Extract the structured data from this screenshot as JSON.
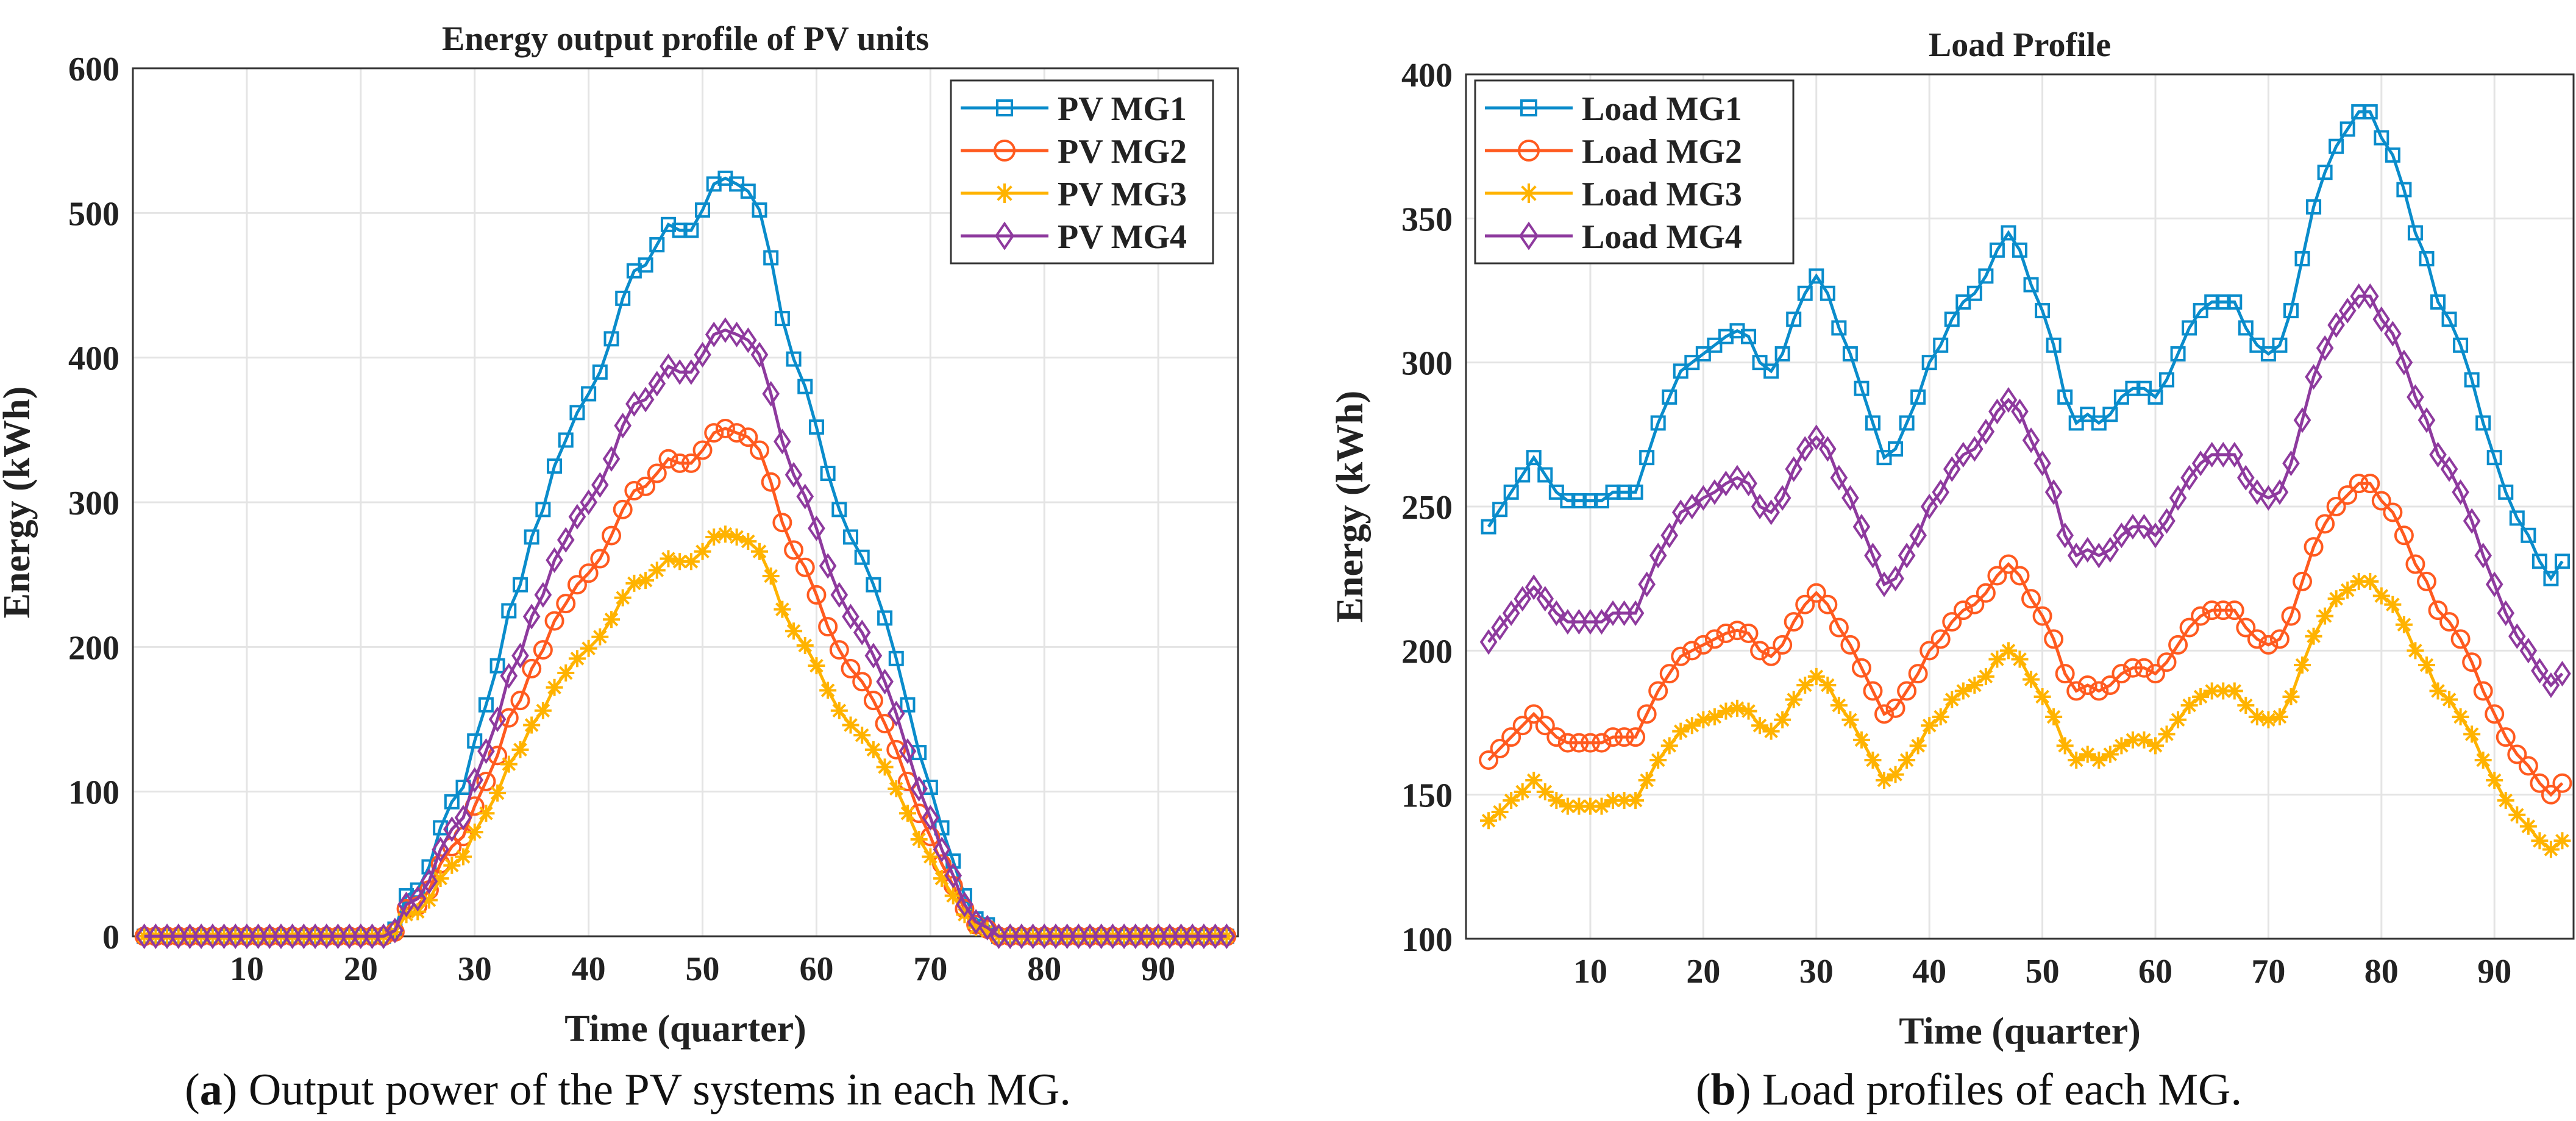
{
  "colors": {
    "s1": "#0A8CCB",
    "s2": "#FF5A1F",
    "s3": "#FFB300",
    "s4": "#8E3A9E",
    "grid": "#E4E4E4"
  },
  "captions": [
    {
      "letter": "a",
      "text": " Output power of the PV systems in each MG."
    },
    {
      "letter": "b",
      "text": " Load profiles of each MG."
    }
  ],
  "chart_data": [
    {
      "type": "line",
      "title": "Energy output profile of PV units",
      "xlabel": "Time (quarter)",
      "ylabel": "Energy (kWh)",
      "xlim": [
        0,
        97
      ],
      "ylim": [
        0,
        600
      ],
      "xticks": [
        10,
        20,
        30,
        40,
        50,
        60,
        70,
        80,
        90
      ],
      "yticks": [
        0,
        100,
        200,
        300,
        400,
        500,
        600
      ],
      "grid": true,
      "legend": "top-right",
      "x_start": 1,
      "series": [
        {
          "name": "PV MG1",
          "marker": "square",
          "values": [
            0,
            0,
            0,
            0,
            0,
            0,
            0,
            0,
            0,
            0,
            0,
            0,
            0,
            0,
            0,
            0,
            0,
            0,
            0,
            0,
            0,
            0,
            5,
            28,
            32,
            48,
            75,
            93,
            103,
            135,
            160,
            187,
            225,
            243,
            276,
            295,
            325,
            343,
            362,
            375,
            390,
            413,
            441,
            460,
            464,
            478,
            492,
            488,
            488,
            502,
            520,
            524,
            520,
            515,
            502,
            469,
            427,
            399,
            380,
            352,
            320,
            295,
            276,
            262,
            243,
            220,
            192,
            160,
            127,
            103,
            75,
            52,
            28,
            12,
            8,
            0,
            0,
            0,
            0,
            0,
            0,
            0,
            0,
            0,
            0,
            0,
            0,
            0,
            0,
            0,
            0,
            0,
            0,
            0,
            0,
            0
          ]
        },
        {
          "name": "PV MG2",
          "marker": "circle",
          "values": [
            0,
            0,
            0,
            0,
            0,
            0,
            0,
            0,
            0,
            0,
            0,
            0,
            0,
            0,
            0,
            0,
            0,
            0,
            0,
            0,
            0,
            0,
            3,
            19,
            21,
            32,
            50,
            62,
            69,
            90,
            107,
            125,
            151,
            163,
            185,
            198,
            218,
            230,
            243,
            251,
            261,
            277,
            295,
            308,
            311,
            320,
            330,
            327,
            327,
            336,
            348,
            351,
            348,
            345,
            336,
            314,
            286,
            267,
            255,
            236,
            214,
            198,
            185,
            176,
            163,
            147,
            129,
            107,
            85,
            69,
            50,
            35,
            19,
            8,
            5,
            0,
            0,
            0,
            0,
            0,
            0,
            0,
            0,
            0,
            0,
            0,
            0,
            0,
            0,
            0,
            0,
            0,
            0,
            0,
            0,
            0
          ]
        },
        {
          "name": "PV MG3",
          "marker": "asterisk",
          "values": [
            0,
            0,
            0,
            0,
            0,
            0,
            0,
            0,
            0,
            0,
            0,
            0,
            0,
            0,
            0,
            0,
            0,
            0,
            0,
            0,
            0,
            0,
            3,
            15,
            17,
            25,
            40,
            49,
            55,
            72,
            85,
            99,
            119,
            129,
            146,
            156,
            172,
            182,
            192,
            199,
            207,
            219,
            234,
            244,
            246,
            253,
            261,
            259,
            259,
            266,
            276,
            278,
            276,
            273,
            266,
            249,
            226,
            211,
            201,
            187,
            170,
            156,
            146,
            139,
            129,
            117,
            102,
            85,
            67,
            55,
            40,
            28,
            15,
            6,
            4,
            0,
            0,
            0,
            0,
            0,
            0,
            0,
            0,
            0,
            0,
            0,
            0,
            0,
            0,
            0,
            0,
            0,
            0,
            0,
            0,
            0
          ]
        },
        {
          "name": "PV MG4",
          "marker": "diamond",
          "values": [
            0,
            0,
            0,
            0,
            0,
            0,
            0,
            0,
            0,
            0,
            0,
            0,
            0,
            0,
            0,
            0,
            0,
            0,
            0,
            0,
            0,
            0,
            4,
            22,
            26,
            38,
            60,
            74,
            82,
            108,
            128,
            150,
            180,
            194,
            221,
            236,
            260,
            274,
            290,
            300,
            312,
            330,
            353,
            368,
            371,
            382,
            394,
            390,
            390,
            402,
            416,
            419,
            416,
            412,
            402,
            375,
            342,
            319,
            304,
            282,
            256,
            236,
            221,
            210,
            194,
            176,
            154,
            128,
            102,
            82,
            60,
            42,
            22,
            10,
            6,
            0,
            0,
            0,
            0,
            0,
            0,
            0,
            0,
            0,
            0,
            0,
            0,
            0,
            0,
            0,
            0,
            0,
            0,
            0,
            0,
            0
          ]
        }
      ]
    },
    {
      "type": "line",
      "title": "Load Profile",
      "xlabel": "Time (quarter)",
      "ylabel": "Energy (kWh)",
      "xlim": [
        -1,
        97
      ],
      "ylim": [
        100,
        400
      ],
      "xticks": [
        10,
        20,
        30,
        40,
        50,
        60,
        70,
        80,
        90
      ],
      "yticks": [
        100,
        150,
        200,
        250,
        300,
        350,
        400
      ],
      "grid": true,
      "legend": "top-left",
      "x_start": 1,
      "series": [
        {
          "name": "Load MG1",
          "marker": "square",
          "values": [
            243,
            249,
            255,
            261,
            267,
            261,
            255,
            252,
            252,
            252,
            252,
            255,
            255,
            255,
            267,
            279,
            288,
            297,
            300,
            303,
            306,
            309,
            311,
            309,
            300,
            297,
            303,
            315,
            324,
            330,
            324,
            312,
            303,
            291,
            279,
            267,
            270,
            279,
            288,
            300,
            306,
            315,
            321,
            324,
            330,
            339,
            345,
            339,
            327,
            318,
            306,
            288,
            279,
            282,
            279,
            282,
            288,
            291,
            291,
            288,
            294,
            303,
            312,
            318,
            321,
            321,
            321,
            312,
            306,
            303,
            306,
            318,
            336,
            354,
            366,
            375,
            381,
            387,
            387,
            378,
            372,
            360,
            345,
            336,
            321,
            315,
            306,
            294,
            279,
            267,
            255,
            246,
            240,
            231,
            225,
            231
          ]
        },
        {
          "name": "Load MG2",
          "marker": "circle",
          "values": [
            162,
            166,
            170,
            174,
            178,
            174,
            170,
            168,
            168,
            168,
            168,
            170,
            170,
            170,
            178,
            186,
            192,
            198,
            200,
            202,
            204,
            206,
            207,
            206,
            200,
            198,
            202,
            210,
            216,
            220,
            216,
            208,
            202,
            194,
            186,
            178,
            180,
            186,
            192,
            200,
            204,
            210,
            214,
            216,
            220,
            226,
            230,
            226,
            218,
            212,
            204,
            192,
            186,
            188,
            186,
            188,
            192,
            194,
            194,
            192,
            196,
            202,
            208,
            212,
            214,
            214,
            214,
            208,
            204,
            202,
            204,
            212,
            224,
            236,
            244,
            250,
            254,
            258,
            258,
            252,
            248,
            240,
            230,
            224,
            214,
            210,
            204,
            196,
            186,
            178,
            170,
            164,
            160,
            154,
            150,
            154
          ]
        },
        {
          "name": "Load MG3",
          "marker": "asterisk",
          "values": [
            141,
            144,
            148,
            151,
            155,
            151,
            148,
            146,
            146,
            146,
            146,
            148,
            148,
            148,
            155,
            162,
            167,
            172,
            174,
            176,
            177,
            179,
            180,
            179,
            174,
            172,
            176,
            183,
            188,
            191,
            188,
            181,
            176,
            169,
            162,
            155,
            157,
            162,
            167,
            174,
            177,
            183,
            186,
            188,
            191,
            197,
            200,
            197,
            190,
            184,
            177,
            167,
            162,
            164,
            162,
            164,
            167,
            169,
            169,
            167,
            171,
            176,
            181,
            184,
            186,
            186,
            186,
            181,
            177,
            176,
            177,
            184,
            195,
            205,
            212,
            218,
            221,
            224,
            224,
            219,
            216,
            209,
            200,
            195,
            186,
            183,
            177,
            171,
            162,
            155,
            148,
            143,
            139,
            134,
            131,
            134
          ]
        },
        {
          "name": "Load MG4",
          "marker": "diamond",
          "values": [
            203,
            208,
            213,
            218,
            222,
            218,
            213,
            210,
            210,
            210,
            210,
            213,
            213,
            213,
            223,
            233,
            240,
            248,
            250,
            253,
            255,
            258,
            260,
            258,
            250,
            248,
            253,
            263,
            270,
            274,
            270,
            260,
            253,
            243,
            233,
            223,
            225,
            233,
            240,
            250,
            255,
            263,
            268,
            270,
            276,
            283,
            287,
            283,
            273,
            265,
            255,
            240,
            233,
            235,
            233,
            235,
            240,
            243,
            243,
            240,
            245,
            253,
            260,
            265,
            268,
            268,
            268,
            260,
            255,
            253,
            255,
            265,
            280,
            295,
            305,
            313,
            318,
            323,
            323,
            315,
            310,
            300,
            288,
            280,
            268,
            263,
            255,
            245,
            233,
            223,
            213,
            205,
            200,
            193,
            188,
            192
          ]
        }
      ]
    }
  ]
}
